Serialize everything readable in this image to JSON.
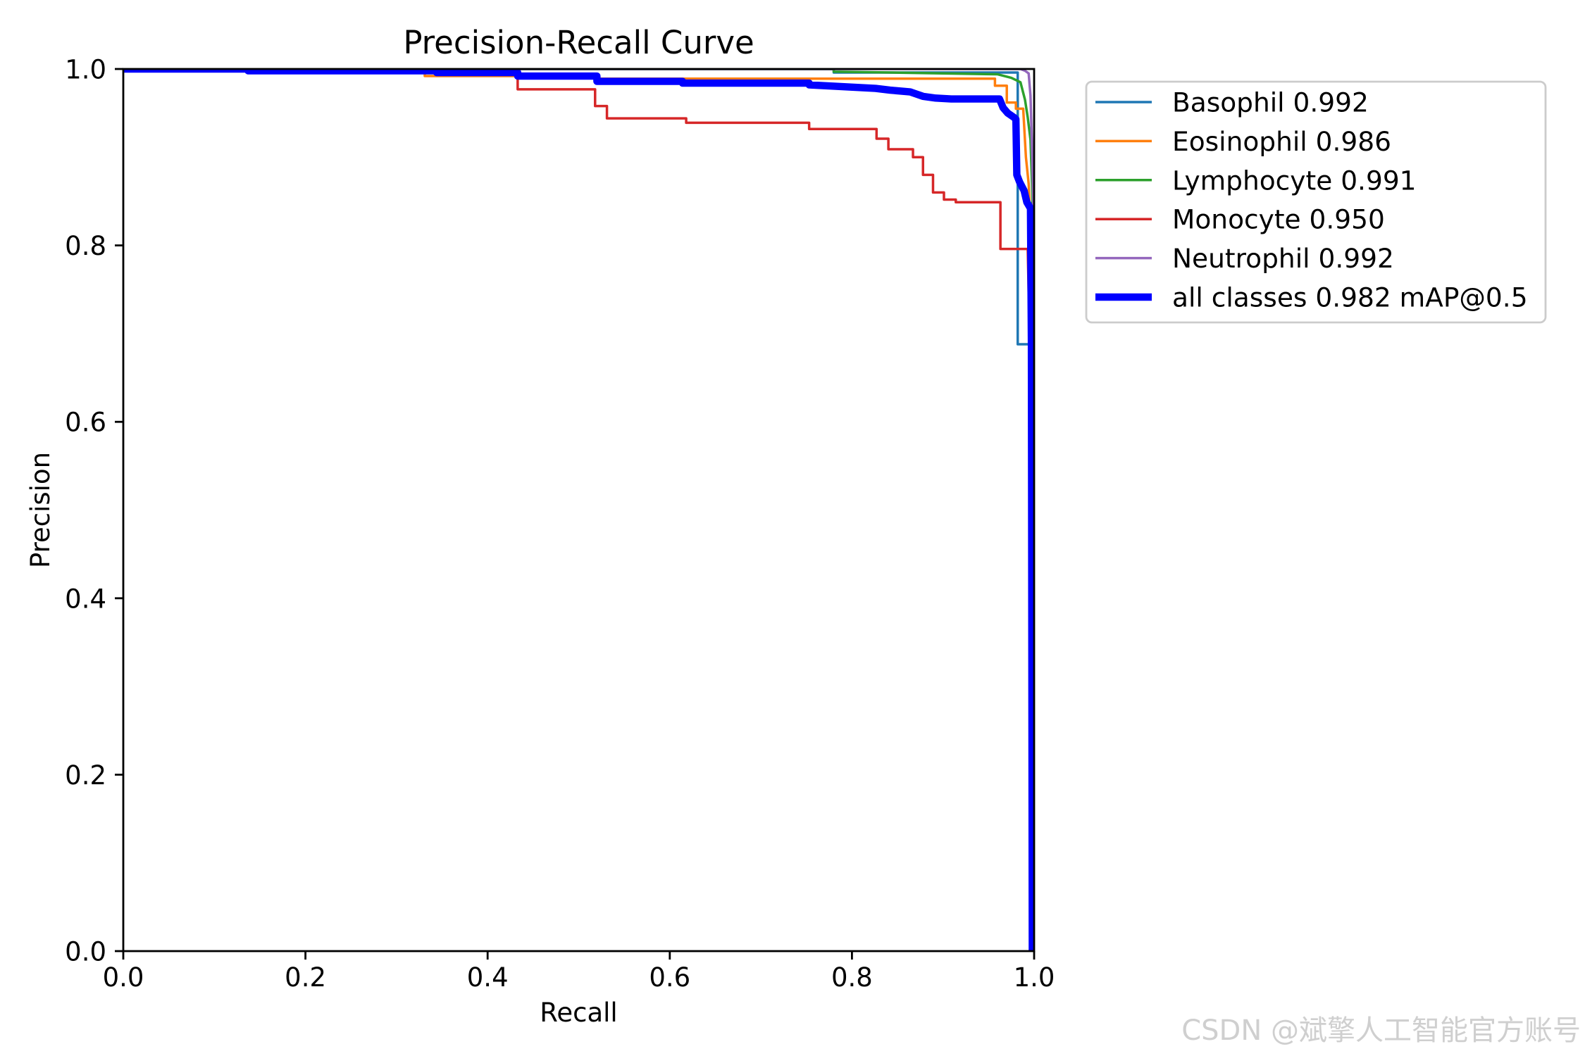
{
  "watermark": "CSDN @斌擎人工智能官方账号",
  "chart_data": {
    "type": "line",
    "title": "Precision-Recall Curve",
    "xlabel": "Recall",
    "ylabel": "Precision",
    "xlim": [
      0,
      1
    ],
    "ylim": [
      0,
      1
    ],
    "xticks": [
      "0.0",
      "0.2",
      "0.4",
      "0.6",
      "0.8",
      "1.0"
    ],
    "yticks": [
      "0.0",
      "0.2",
      "0.4",
      "0.6",
      "0.8",
      "1.0"
    ],
    "grid": false,
    "legend_position": "outside-right-top",
    "series": [
      {
        "name": "Basophil 0.992",
        "color": "#1f77b4",
        "x": [
          0,
          0.78,
          0.78,
          0.982,
          0.982,
          0.997,
          0.999
        ],
        "y": [
          1.0,
          1.0,
          0.996,
          0.996,
          0.688,
          0.688,
          0.0
        ]
      },
      {
        "name": "Eosinophil 0.986",
        "color": "#ff7f0e",
        "x": [
          0,
          0.331,
          0.331,
          0.52,
          0.52,
          0.957,
          0.957,
          0.97,
          0.97,
          0.98,
          0.98,
          0.988,
          0.991,
          0.994,
          0.997,
          0.999
        ],
        "y": [
          1.0,
          1.0,
          0.992,
          0.992,
          0.989,
          0.989,
          0.981,
          0.981,
          0.962,
          0.962,
          0.955,
          0.955,
          0.9,
          0.87,
          0.8,
          0.0
        ]
      },
      {
        "name": "Lymphocyte 0.991",
        "color": "#2ca02c",
        "x": [
          0,
          0.78,
          0.78,
          0.96,
          0.975,
          0.985,
          0.99,
          0.993,
          0.996,
          0.998,
          0.999,
          1.0
        ],
        "y": [
          1.0,
          1.0,
          0.997,
          0.994,
          0.99,
          0.985,
          0.965,
          0.945,
          0.92,
          0.86,
          0.8,
          0.0
        ]
      },
      {
        "name": "Monocyte 0.950",
        "color": "#d62728",
        "x": [
          0,
          0.433,
          0.433,
          0.518,
          0.518,
          0.531,
          0.531,
          0.618,
          0.618,
          0.753,
          0.753,
          0.827,
          0.827,
          0.84,
          0.84,
          0.867,
          0.867,
          0.878,
          0.878,
          0.889,
          0.889,
          0.901,
          0.901,
          0.914,
          0.914,
          0.963,
          0.963,
          0.993,
          0.997,
          0.999
        ],
        "y": [
          1.0,
          1.0,
          0.977,
          0.977,
          0.958,
          0.958,
          0.944,
          0.944,
          0.939,
          0.939,
          0.932,
          0.932,
          0.921,
          0.921,
          0.909,
          0.909,
          0.9,
          0.9,
          0.88,
          0.88,
          0.86,
          0.86,
          0.852,
          0.852,
          0.849,
          0.849,
          0.796,
          0.796,
          0.6,
          0.0
        ]
      },
      {
        "name": "Neutrophil 0.992",
        "color": "#9467bd",
        "x": [
          0,
          0.985,
          0.99,
          0.994,
          0.996,
          0.998,
          0.999,
          1.0
        ],
        "y": [
          1.0,
          1.0,
          0.998,
          0.995,
          0.97,
          0.9,
          0.85,
          0.0
        ]
      },
      {
        "name": "all classes 0.982 mAP@0.5",
        "color": "#0000ff",
        "x": [
          0,
          0.137,
          0.137,
          0.344,
          0.344,
          0.433,
          0.433,
          0.52,
          0.52,
          0.614,
          0.614,
          0.753,
          0.753,
          0.826,
          0.842,
          0.864,
          0.878,
          0.892,
          0.909,
          0.962,
          0.966,
          0.971,
          0.978,
          0.98,
          0.981,
          0.984,
          0.989,
          0.992,
          0.996,
          0.997,
          0.998
        ],
        "y": [
          1.0,
          1.0,
          0.998,
          0.998,
          0.996,
          0.996,
          0.992,
          0.992,
          0.986,
          0.986,
          0.984,
          0.984,
          0.982,
          0.978,
          0.976,
          0.974,
          0.969,
          0.967,
          0.966,
          0.966,
          0.956,
          0.95,
          0.945,
          0.943,
          0.88,
          0.872,
          0.862,
          0.849,
          0.842,
          0.688,
          0.0
        ]
      }
    ]
  }
}
